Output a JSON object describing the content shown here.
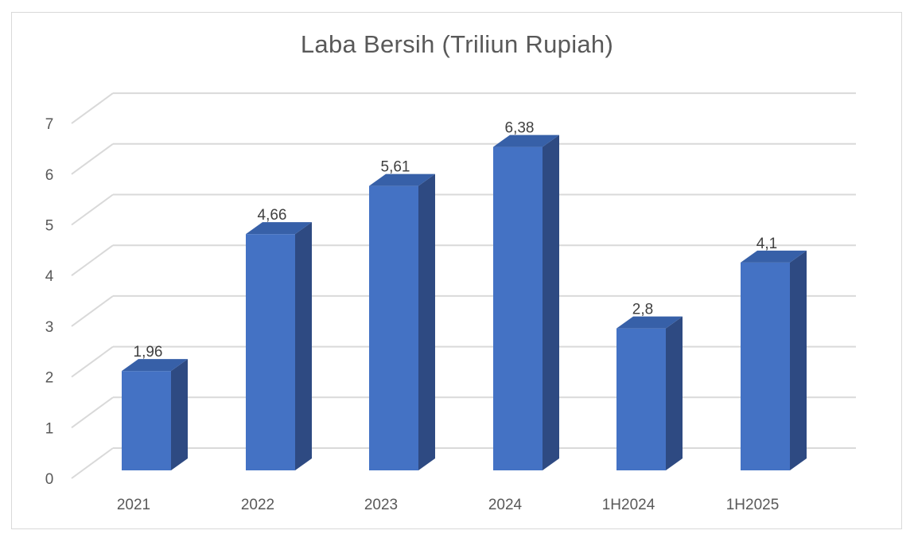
{
  "chart_data": {
    "type": "bar",
    "title": "Laba Bersih (Triliun Rupiah)",
    "categories": [
      "2021",
      "2022",
      "2023",
      "2024",
      "1H2024",
      "1H2025"
    ],
    "values": [
      1.96,
      4.66,
      5.61,
      6.38,
      2.8,
      4.1
    ],
    "data_labels": [
      "1,96",
      "4,66",
      "5,61",
      "6,38",
      "2,8",
      "4,1"
    ],
    "y_ticks": [
      "0",
      "1",
      "2",
      "3",
      "4",
      "5",
      "6",
      "7"
    ],
    "ylim": [
      0,
      7
    ],
    "grid": true,
    "legend": "none",
    "style": "3d-column",
    "colors": {
      "bar_front": "#4472c4",
      "bar_side": "#2e4a82",
      "bar_top": "#3760a8",
      "grid": "#d9d9d9",
      "text": "#595959"
    }
  }
}
